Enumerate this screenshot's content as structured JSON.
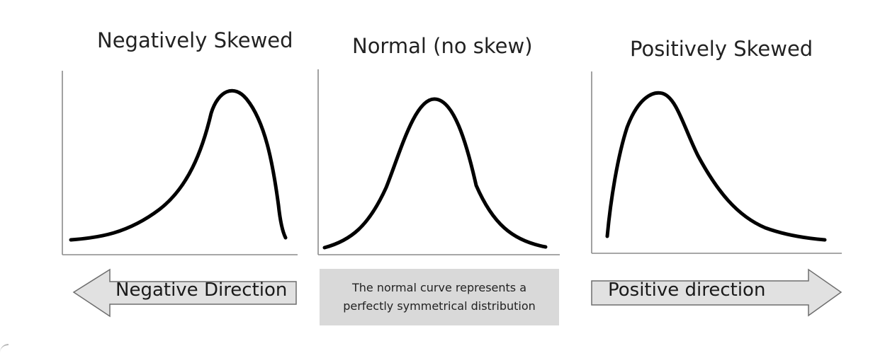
{
  "panels": {
    "negative": {
      "title": "Negatively Skewed"
    },
    "normal": {
      "title": "Normal (no skew)"
    },
    "positive": {
      "title": "Positively Skewed"
    }
  },
  "arrows": {
    "negative": {
      "label": "Negative Direction",
      "direction": "left"
    },
    "positive": {
      "label": "Positive direction",
      "direction": "right"
    }
  },
  "note": {
    "lines": [
      "The normal curve represents a",
      "perfectly symmetrical distribution"
    ]
  },
  "colors": {
    "curve": "#000000",
    "axis": "#8a8a8a",
    "arrow_fill": "#e1e1e1",
    "arrow_stroke": "#6e6e6e",
    "note_background": "#d9d9d9"
  }
}
